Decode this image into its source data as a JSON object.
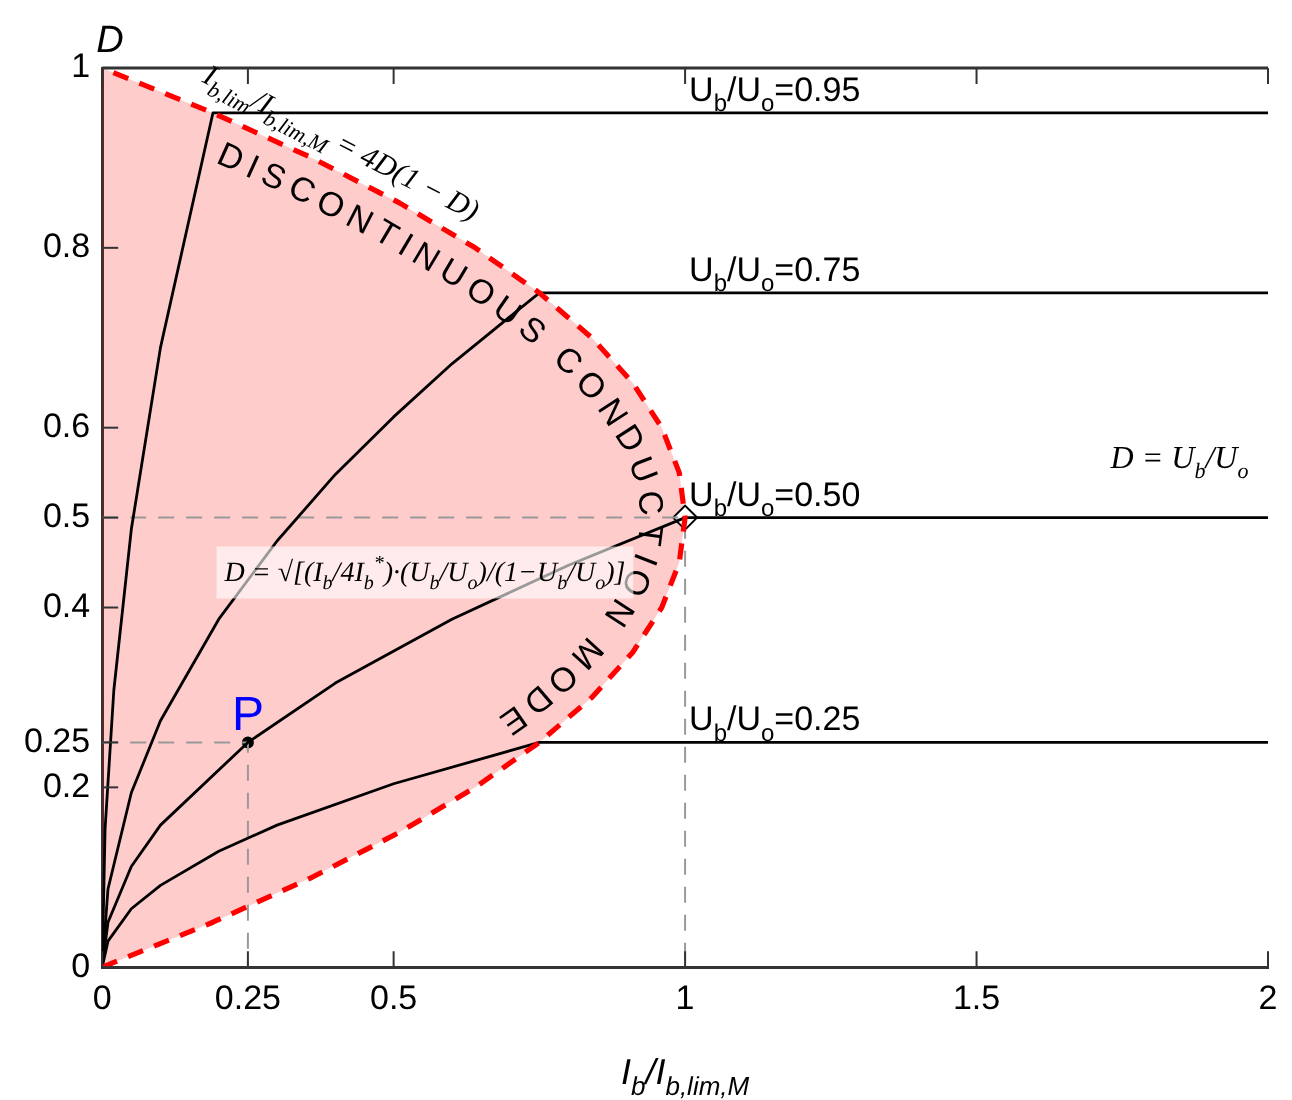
{
  "chart_data": {
    "type": "line",
    "xlabel": "I$_{b}$/I$_{b,lim,M}$",
    "ylabel": "D",
    "xlim": [
      0,
      2
    ],
    "xticks": [
      0,
      0.25,
      0.5,
      1,
      1.5,
      2
    ],
    "ylim": [
      0,
      1
    ],
    "yticks": [
      0,
      0.2,
      0.25,
      0.4,
      0.5,
      0.6,
      0.8,
      1
    ],
    "grid": false,
    "legend": false,
    "marker": "none",
    "line_style": "solid",
    "series": [
      {
        "type": "area",
        "color": "#ff0000",
        "line_style": "dashed",
        "x": [
          0,
          0.19,
          0.36,
          0.51,
          0.64,
          0.75,
          0.84,
          0.91,
          0.96,
          0.99,
          1,
          0.99,
          0.96,
          0.91,
          0.84,
          0.75,
          0.64,
          0.51,
          0.36,
          0.19,
          0
        ],
        "values": [
          0,
          0.05,
          0.1,
          0.15,
          0.2,
          0.25,
          0.3,
          0.35,
          0.4,
          0.45,
          0.5,
          0.55,
          0.6,
          0.65,
          0.7,
          0.75,
          0.8,
          0.85,
          0.9,
          0.95,
          1
        ]
      },
      {
        "name": "U$_{b}$/U$_{o}$=0.95",
        "color": "#000000",
        "x": [
          0,
          0.005,
          0.02,
          0.05,
          0.1,
          0.19,
          2
        ],
        "values": [
          0,
          0.154,
          0.308,
          0.487,
          0.689,
          0.95,
          0.95
        ]
      },
      {
        "name": "U$_{b}$/U$_{o}$=0.75",
        "color": "#000000",
        "x": [
          0,
          0.01,
          0.05,
          0.1,
          0.2,
          0.3,
          0.4,
          0.5,
          0.6,
          0.75,
          2
        ],
        "values": [
          0,
          0.087,
          0.194,
          0.274,
          0.387,
          0.474,
          0.548,
          0.612,
          0.671,
          0.75,
          0.75
        ]
      },
      {
        "name": "U$_{b}$/U$_{o}$=0.50",
        "color": "#000000",
        "x": [
          0,
          0.01,
          0.05,
          0.1,
          0.25,
          0.4,
          0.6,
          0.8,
          1,
          2
        ],
        "values": [
          0,
          0.05,
          0.112,
          0.158,
          0.25,
          0.316,
          0.387,
          0.447,
          0.5,
          0.5
        ]
      },
      {
        "name": "U$_{b}$/U$_{o}$=0.25",
        "color": "#000000",
        "x": [
          0,
          0.01,
          0.05,
          0.1,
          0.2,
          0.3,
          0.5,
          0.75,
          2
        ],
        "values": [
          0,
          0.029,
          0.065,
          0.091,
          0.129,
          0.158,
          0.204,
          0.25,
          0.25
        ]
      },
      {
        "type": "line",
        "color": "#999999",
        "line_style": "dashed",
        "x": [
          0,
          1,
          1
        ],
        "values": [
          0.5,
          0.5,
          0
        ]
      },
      {
        "type": "line",
        "color": "#999999",
        "line_style": "dashed",
        "x": [
          0,
          0.25,
          0.25
        ],
        "values": [
          0.25,
          0.25,
          0
        ]
      },
      {
        "type": "scatter",
        "marker": "diamond",
        "color": "#000000",
        "x": [
          1
        ],
        "values": [
          0.5
        ]
      },
      {
        "type": "scatter",
        "marker": "circle",
        "color": "#000000",
        "x": [
          0.25
        ],
        "values": [
          0.25
        ]
      }
    ],
    "annotations": [
      {
        "text": "P",
        "x": 0.25,
        "y": 0.25
      },
      "I$_{b,lim}$/I$_{b,lim,M}$ = 4D(1 − D)",
      "DISCONTINUOUS CONDUCTION MODE",
      "D = √[(I$_{b}$/4I$_{b}$$^{*}$)·(U$_{b}$/U$_{o}$)/(1−U$_{b}$/U$_{o}$)]",
      "D = U$_{b}$/U$_{o}$"
    ]
  }
}
